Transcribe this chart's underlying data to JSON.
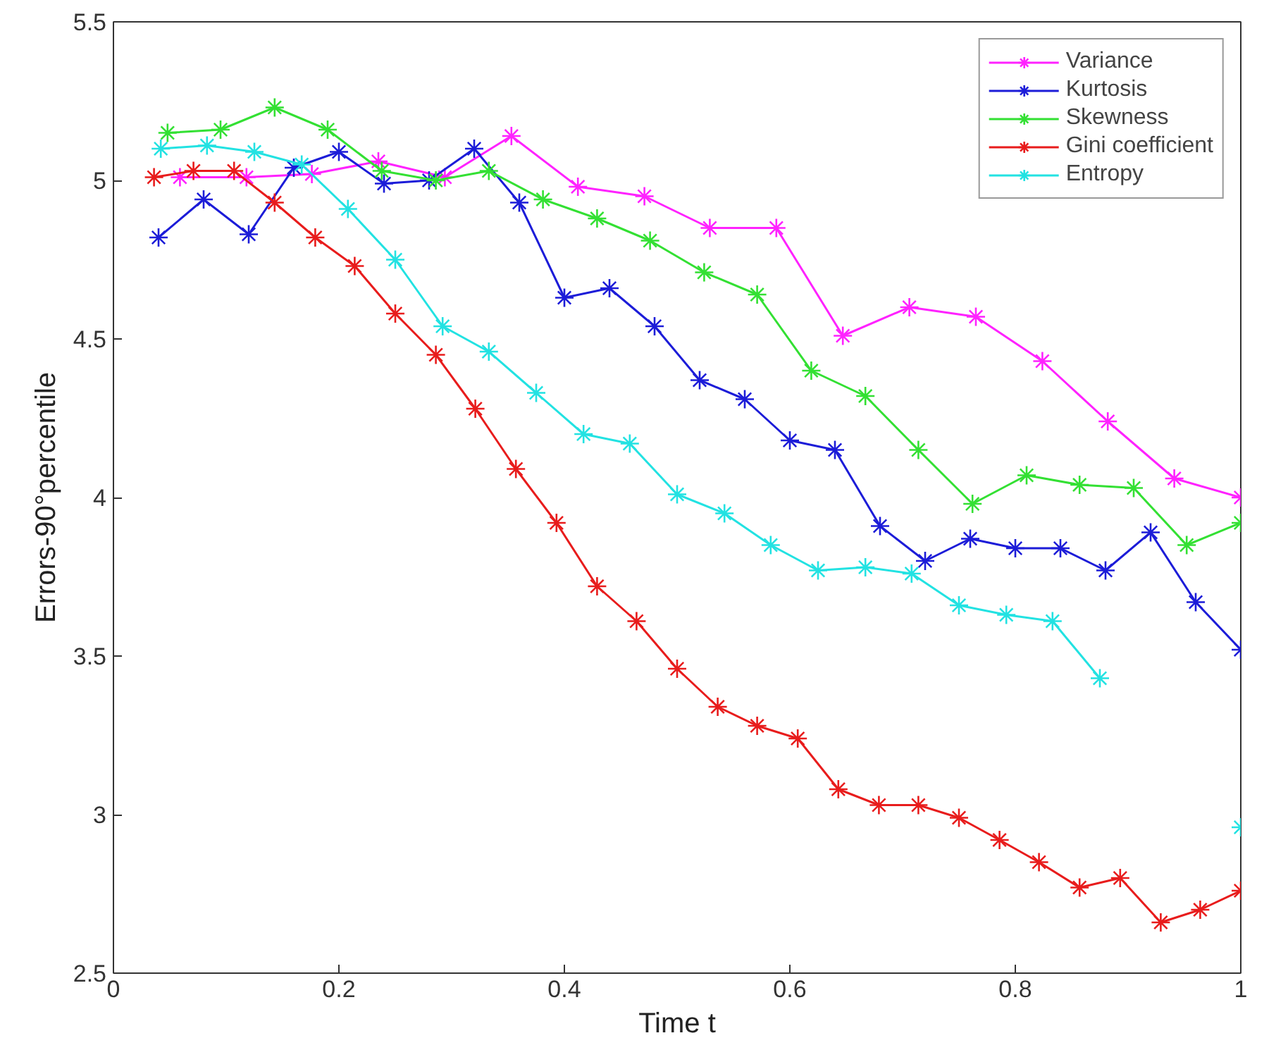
{
  "chart_data": {
    "type": "line",
    "xlabel": "Time t",
    "ylabel": "Errors-90°percentile",
    "xlim": [
      0,
      1
    ],
    "ylim": [
      2.5,
      5.5
    ],
    "xticks": [
      0,
      0.2,
      0.4,
      0.6,
      0.8,
      1
    ],
    "yticks": [
      2.5,
      3,
      3.5,
      4,
      4.5,
      5,
      5.5
    ],
    "grid": false,
    "legend": "top right",
    "marker": "cross",
    "line_style": "solid",
    "series": [
      {
        "name": "Variance",
        "color": "#ff22ff",
        "x": [
          0.059,
          0.118,
          0.176,
          0.235,
          0.294,
          0.353,
          0.412,
          0.471,
          0.529,
          0.588,
          0.647,
          0.706,
          0.765,
          0.824,
          0.882,
          0.941,
          1.0
        ],
        "values": [
          5.01,
          5.01,
          5.02,
          5.06,
          5.01,
          5.14,
          4.98,
          4.95,
          4.85,
          4.85,
          4.51,
          4.6,
          4.57,
          4.43,
          4.24,
          4.06,
          4.0
        ]
      },
      {
        "name": "Kurtosis",
        "color": "#1c1cd8",
        "x": [
          0.04,
          0.08,
          0.12,
          0.16,
          0.2,
          0.24,
          0.28,
          0.32,
          0.36,
          0.4,
          0.44,
          0.48,
          0.52,
          0.56,
          0.6,
          0.64,
          0.68,
          0.72,
          0.76,
          0.8,
          0.84,
          0.88,
          0.92,
          0.96,
          1.0
        ],
        "values": [
          4.82,
          4.94,
          4.83,
          5.04,
          5.09,
          4.99,
          5.0,
          5.1,
          4.93,
          4.63,
          4.66,
          4.54,
          4.37,
          4.31,
          4.18,
          4.15,
          3.91,
          3.8,
          3.87,
          3.84,
          3.84,
          3.77,
          3.89,
          3.67,
          3.52
        ]
      },
      {
        "name": "Skewness",
        "color": "#33e033",
        "x": [
          0.048,
          0.095,
          0.143,
          0.19,
          0.238,
          0.286,
          0.333,
          0.381,
          0.429,
          0.476,
          0.524,
          0.571,
          0.619,
          0.667,
          0.714,
          0.762,
          0.81,
          0.857,
          0.905,
          0.952,
          1.0
        ],
        "values": [
          5.15,
          5.16,
          5.23,
          5.16,
          5.03,
          5.0,
          5.03,
          4.94,
          4.88,
          4.81,
          4.71,
          4.64,
          4.4,
          4.32,
          4.15,
          3.98,
          4.07,
          4.04,
          4.03,
          3.85,
          3.92
        ]
      },
      {
        "name": "Gini coefficient",
        "color": "#e81c1c",
        "x": [
          0.036,
          0.071,
          0.107,
          0.143,
          0.179,
          0.214,
          0.25,
          0.286,
          0.321,
          0.357,
          0.393,
          0.429,
          0.464,
          0.5,
          0.536,
          0.571,
          0.607,
          0.643,
          0.679,
          0.714,
          0.75,
          0.786,
          0.821,
          0.857,
          0.893,
          0.929,
          0.964,
          1.0
        ],
        "values": [
          5.01,
          5.03,
          5.03,
          4.93,
          4.82,
          4.73,
          4.58,
          4.45,
          4.28,
          4.09,
          3.92,
          3.72,
          3.61,
          3.46,
          3.34,
          3.28,
          3.24,
          3.08,
          3.03,
          3.03,
          2.99,
          2.92,
          2.85,
          2.77,
          2.8,
          2.66,
          2.7,
          2.76
        ]
      },
      {
        "name": "Entropy",
        "color": "#22e2e2",
        "x": [
          0.042,
          0.083,
          0.125,
          0.167,
          0.208,
          0.25,
          0.292,
          0.333,
          0.375,
          0.417,
          0.458,
          0.5,
          0.542,
          0.583,
          0.625,
          0.667,
          0.708,
          0.75,
          0.792,
          0.833,
          0.875,
          0.917,
          0.958,
          1.0
        ],
        "values": [
          5.1,
          5.11,
          5.09,
          5.05,
          4.91,
          4.75,
          4.54,
          4.46,
          4.33,
          4.2,
          4.17,
          4.01,
          3.95,
          3.85,
          3.77,
          3.78,
          3.76,
          3.66,
          3.63,
          3.61,
          3.43,
          null,
          null,
          2.96
        ]
      }
    ]
  }
}
